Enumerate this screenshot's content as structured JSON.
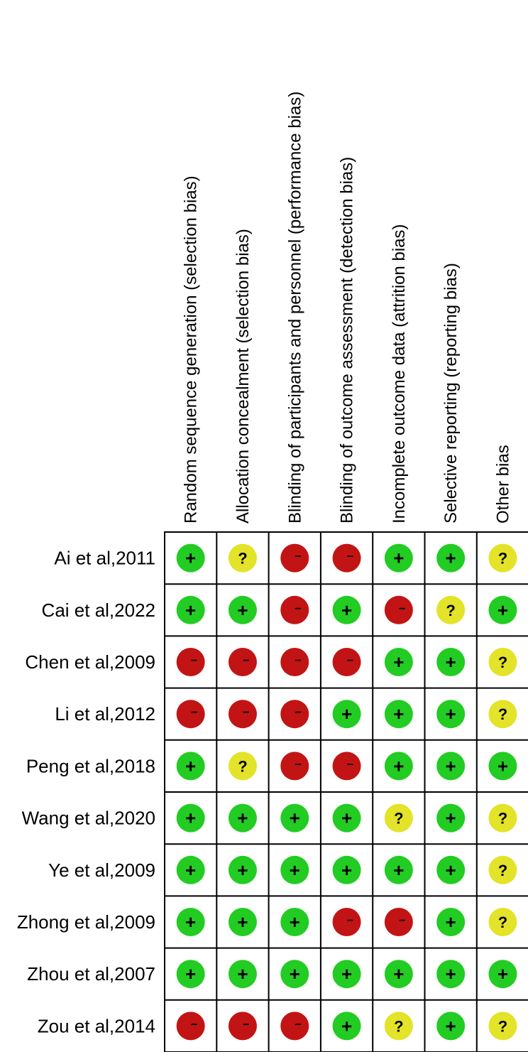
{
  "chart_data": {
    "type": "heatmap",
    "title": "",
    "domains": [
      "Random sequence generation (selection bias)",
      "Allocation concealment (selection bias)",
      "Blinding of participants and personnel (performance bias)",
      "Blinding of outcome assessment (detection bias)",
      "Incomplete outcome data (attrition bias)",
      "Selective reporting (reporting bias)",
      "Other bias"
    ],
    "studies": [
      "Ai et al,2011",
      "Cai et al,2022",
      "Chen et al,2009",
      "Li et al,2012",
      "Peng et al,2018",
      "Wang et al,2020",
      "Ye et al,2009",
      "Zhong et al,2009",
      "Zhou et al,2007",
      "Zou et al,2014"
    ],
    "judgements": [
      [
        "+",
        "?",
        "-",
        "-",
        "+",
        "+",
        "?"
      ],
      [
        "+",
        "+",
        "-",
        "+",
        "-",
        "?",
        "+"
      ],
      [
        "-",
        "-",
        "-",
        "-",
        "+",
        "+",
        "?"
      ],
      [
        "-",
        "-",
        "-",
        "+",
        "+",
        "+",
        "?"
      ],
      [
        "+",
        "?",
        "-",
        "-",
        "+",
        "+",
        "+"
      ],
      [
        "+",
        "+",
        "+",
        "+",
        "?",
        "+",
        "?"
      ],
      [
        "+",
        "+",
        "+",
        "+",
        "+",
        "+",
        "?"
      ],
      [
        "+",
        "+",
        "+",
        "-",
        "-",
        "+",
        "?"
      ],
      [
        "+",
        "+",
        "+",
        "+",
        "+",
        "+",
        "+"
      ],
      [
        "-",
        "-",
        "-",
        "+",
        "?",
        "+",
        "?"
      ]
    ],
    "symbols": {
      "+": "+",
      "?": "?",
      "-": "−"
    },
    "colors": {
      "+": "#22cc22",
      "?": "#e3e32a",
      "-": "#c21414",
      "grid": "#000000"
    }
  }
}
